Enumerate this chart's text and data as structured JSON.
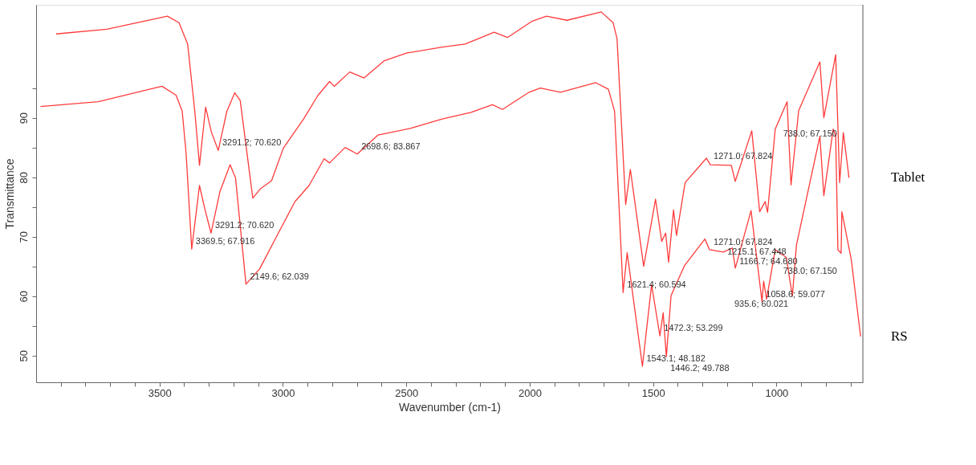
{
  "chart_data": {
    "type": "line",
    "xlabel": "Wavenumber (cm-1)",
    "ylabel": "Transmittance",
    "xlim": [
      4000,
      650
    ],
    "ylim": [
      45.5,
      109
    ],
    "xticks": [
      {
        "value": 3900,
        "label": null
      },
      {
        "value": 3800,
        "label": null
      },
      {
        "value": 3700,
        "label": null
      },
      {
        "value": 3600,
        "label": null
      },
      3500,
      {
        "value": 3400,
        "label": null
      },
      {
        "value": 3300,
        "label": null
      },
      {
        "value": 3200,
        "label": null
      },
      {
        "value": 3100,
        "label": null
      },
      3000,
      {
        "value": 2900,
        "label": null
      },
      {
        "value": 2800,
        "label": null
      },
      {
        "value": 2700,
        "label": null
      },
      {
        "value": 2600,
        "label": null
      },
      2500,
      {
        "value": 2400,
        "label": null
      },
      {
        "value": 2300,
        "label": null
      },
      {
        "value": 2200,
        "label": null
      },
      {
        "value": 2100,
        "label": null
      },
      2000,
      {
        "value": 1900,
        "label": null
      },
      {
        "value": 1800,
        "label": null
      },
      {
        "value": 1700,
        "label": null
      },
      {
        "value": 1600,
        "label": null
      },
      1500,
      {
        "value": 1400,
        "label": null
      },
      {
        "value": 1300,
        "label": null
      },
      {
        "value": 1200,
        "label": null
      },
      {
        "value": 1100,
        "label": null
      },
      1000,
      {
        "value": 900,
        "label": null
      },
      {
        "value": 800,
        "label": null
      },
      {
        "value": 700,
        "label": null
      }
    ],
    "yticks": [
      50,
      {
        "value": 55,
        "label": null
      },
      60,
      {
        "value": 65,
        "label": null
      },
      70,
      {
        "value": 75,
        "label": null
      },
      80,
      {
        "value": 85,
        "label": null
      },
      90,
      {
        "value": 95,
        "label": null
      }
    ],
    "grid": false,
    "legend": false,
    "marker": "none",
    "line_style": "solid",
    "series": [
      {
        "name": "Tablet",
        "color": "#ff3b3b",
        "x": [
          3919,
          3713,
          3468,
          3421,
          3386,
          3357,
          3338,
          3313,
          3290,
          3262,
          3227,
          3195,
          3173,
          3122,
          3090,
          3046,
          2998,
          2916,
          2859,
          2811,
          2792,
          2729,
          2671,
          2589,
          2497,
          2354,
          2262,
          2144,
          2090,
          1992,
          1932,
          1849,
          1710,
          1662,
          1646,
          1611,
          1592,
          1538,
          1490,
          1465,
          1449,
          1437,
          1417,
          1405,
          1370,
          1284,
          1268,
          1183,
          1167,
          1100,
          1068,
          1046,
          1036,
          1005,
          957,
          941,
          910,
          824,
          808,
          760,
          744,
          729,
          706
        ],
        "values": [
          104.1,
          104.9,
          107.1,
          106.0,
          102.4,
          91.1,
          82.0,
          91.8,
          87.6,
          84.5,
          91.1,
          94.2,
          92.9,
          76.5,
          78.1,
          79.4,
          84.9,
          89.8,
          93.7,
          96.1,
          95.3,
          97.7,
          96.7,
          99.6,
          100.9,
          101.9,
          102.4,
          104.4,
          103.5,
          106.2,
          107.1,
          106.4,
          107.8,
          106.0,
          103.3,
          75.4,
          81.3,
          65.0,
          76.3,
          69.2,
          70.6,
          65.7,
          74.5,
          70.2,
          79.1,
          83.2,
          82.1,
          82.0,
          79.3,
          87.8,
          74.2,
          75.9,
          74.1,
          88.1,
          92.7,
          78.7,
          91.2,
          99.4,
          90.0,
          100.6,
          79.1,
          87.5,
          79.9
        ]
      },
      {
        "name": "RS",
        "color": "#ff3b3b",
        "x": [
          3982,
          3748,
          3490,
          3433,
          3408,
          3392,
          3369.5,
          3338,
          3316,
          3291.2,
          3255,
          3214,
          3192,
          3149.6,
          3094,
          3021,
          2951,
          2894,
          2833,
          2811,
          2748,
          2698.6,
          2614,
          2484,
          2354,
          2237,
          2151,
          2110,
          2002,
          1957,
          1875,
          1732,
          1681,
          1656,
          1621.4,
          1605,
          1543.1,
          1506,
          1472.3,
          1459,
          1446.2,
          1427,
          1373,
          1290,
          1271.0,
          1215.1,
          1179,
          1166.7,
          1103,
          1058.6,
          1052,
          1040,
          1005,
          960,
          935.6,
          919,
          824,
          808,
          770,
          760,
          751,
          738.0,
          735,
          697,
          659
        ],
        "values": [
          91.9,
          92.7,
          95.3,
          93.8,
          91.1,
          83.9,
          67.9,
          78.6,
          74.6,
          70.6,
          77.6,
          82.1,
          79.9,
          62.0,
          64.6,
          70.4,
          75.9,
          78.6,
          83.1,
          82.4,
          85.0,
          83.9,
          87.1,
          88.2,
          89.8,
          90.9,
          92.2,
          91.4,
          94.3,
          95.0,
          94.3,
          95.9,
          94.8,
          91.1,
          60.6,
          67.3,
          48.2,
          61.9,
          53.3,
          57.2,
          49.8,
          60.1,
          65.1,
          69.6,
          67.8,
          67.4,
          68.1,
          64.7,
          74.4,
          59.1,
          62.5,
          59.5,
          67.8,
          66.5,
          60.0,
          68.6,
          86.9,
          76.9,
          88.1,
          86.9,
          67.8,
          67.2,
          74.2,
          66.2,
          53.2
        ]
      }
    ],
    "annotations": [
      {
        "text": "3291.2; 70.620",
        "x": 3262,
        "y": 84.5
      },
      {
        "text": "1271.0; 67.824",
        "x": 1271.0,
        "y": 82.3
      },
      {
        "text": "738.0; 67.150",
        "x": 738.0,
        "y": 86.0
      },
      {
        "text": "3369.5; 67.916",
        "x": 3369.5,
        "y": 67.916
      },
      {
        "text": "3291.2; 70.620",
        "x": 3291.2,
        "y": 70.62
      },
      {
        "text": "2149.6; 62.039",
        "x": 3149.6,
        "y": 62.039
      },
      {
        "text": "2698.6; 83.867",
        "x": 2698.6,
        "y": 83.867
      },
      {
        "text": "1621.4; 60.594",
        "x": 1621.4,
        "y": 60.594
      },
      {
        "text": "1543.1; 48.182",
        "x": 1543.1,
        "y": 48.182
      },
      {
        "text": "1472.3; 53.299",
        "x": 1472.3,
        "y": 53.299
      },
      {
        "text": "1446.2; 49.788",
        "x": 1446.2,
        "y": 49.788
      },
      {
        "text": "1271.0; 67.824",
        "x": 1271.0,
        "y": 67.824
      },
      {
        "text": "1215.1; 67.448",
        "x": 1215.1,
        "y": 67.448
      },
      {
        "text": "1166.7; 64.680",
        "x": 1166.7,
        "y": 64.68
      },
      {
        "text": "1058.6; 59.077",
        "x": 1058.6,
        "y": 59.077
      },
      {
        "text": "935.6; 60.021",
        "x": 935.6,
        "y": 60.021
      },
      {
        "text": "738.0; 67.150",
        "x": 738.0,
        "y": 67.15
      }
    ]
  }
}
